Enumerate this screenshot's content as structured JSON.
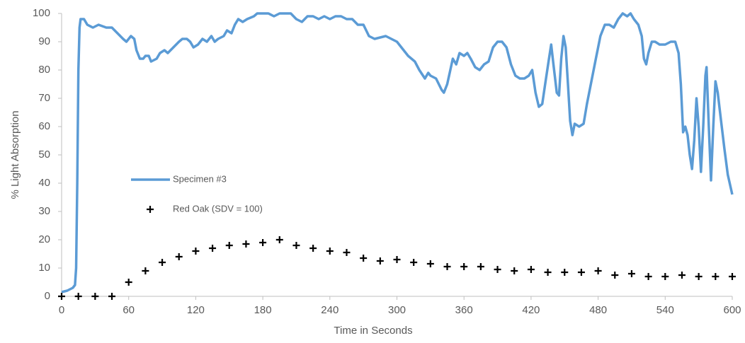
{
  "chart_data": {
    "type": "line",
    "x_label": "Time in Seconds",
    "y_label": "% Light Absorption",
    "xlim": [
      0,
      600
    ],
    "xticks": [
      0,
      60,
      120,
      180,
      240,
      300,
      360,
      420,
      480,
      540,
      600
    ],
    "ylim": [
      0,
      100
    ],
    "yticks": [
      0,
      10,
      20,
      30,
      40,
      50,
      60,
      70,
      80,
      90,
      100
    ],
    "grid": false,
    "series": [
      {
        "name": "Specimen #3",
        "type": "line",
        "color": "#5b9bd5",
        "x": [
          0,
          5,
          10,
          12,
          13,
          14,
          15,
          16,
          17,
          20,
          23,
          28,
          33,
          40,
          45,
          50,
          55,
          58,
          62,
          65,
          67,
          70,
          73,
          75,
          78,
          80,
          85,
          88,
          92,
          95,
          100,
          105,
          108,
          112,
          115,
          118,
          122,
          126,
          130,
          134,
          137,
          140,
          145,
          148,
          152,
          155,
          158,
          162,
          166,
          172,
          175,
          185,
          190,
          195,
          205,
          210,
          215,
          220,
          225,
          230,
          235,
          240,
          245,
          250,
          255,
          260,
          265,
          270,
          275,
          280,
          290,
          300,
          310,
          316,
          320,
          325,
          328,
          330,
          335,
          340,
          342,
          345,
          350,
          353,
          356,
          360,
          363,
          366,
          370,
          374,
          378,
          382,
          386,
          390,
          394,
          398,
          402,
          406,
          410,
          414,
          418,
          421,
          424,
          427,
          430,
          433,
          436,
          438,
          440,
          443,
          445,
          447,
          449,
          451,
          453,
          455,
          457,
          459,
          463,
          467,
          470,
          474,
          478,
          482,
          486,
          490,
          494,
          498,
          502,
          506,
          509,
          512,
          516,
          519,
          521,
          523,
          525,
          528,
          531,
          535,
          540,
          545,
          549,
          552,
          554,
          556,
          558,
          560,
          562,
          564,
          566,
          568,
          570,
          572,
          574,
          576,
          577,
          579,
          581,
          583,
          585,
          587,
          590,
          593,
          596,
          600
        ],
        "values": [
          1.5,
          2,
          3,
          4,
          10,
          40,
          80,
          95,
          98,
          98,
          96,
          95,
          96,
          95,
          95,
          93,
          91,
          90,
          92,
          91,
          87,
          84,
          84,
          85,
          85,
          83,
          84,
          86,
          87,
          86,
          88,
          90,
          91,
          91,
          90,
          88,
          89,
          91,
          90,
          92,
          90,
          91,
          92,
          94,
          93,
          96,
          98,
          97,
          98,
          99,
          100,
          100,
          99,
          100,
          100,
          98,
          97,
          99,
          99,
          98,
          99,
          98,
          99,
          99,
          98,
          98,
          96,
          96,
          92,
          91,
          92,
          90,
          85,
          83,
          80,
          77,
          79,
          78,
          77,
          73,
          72,
          75,
          84,
          82,
          86,
          85,
          86,
          84,
          81,
          80,
          82,
          83,
          88,
          90,
          90,
          88,
          82,
          78,
          77,
          77,
          78,
          80,
          72,
          67,
          68,
          76,
          84,
          89,
          82,
          72,
          71,
          84,
          92,
          88,
          75,
          62,
          57,
          61,
          60,
          61,
          68,
          76,
          84,
          92,
          96,
          96,
          95,
          98,
          100,
          99,
          100,
          98,
          96,
          92,
          84,
          82,
          86,
          90,
          90,
          89,
          89,
          90,
          90,
          86,
          75,
          58,
          60,
          57,
          50,
          45,
          55,
          70,
          60,
          44,
          60,
          78,
          81,
          60,
          41,
          60,
          76,
          72,
          62,
          52,
          43,
          36
        ]
      },
      {
        "name": "Red Oak (SDV = 100)",
        "type": "scatter",
        "color": "#000000",
        "x": [
          0,
          15,
          30,
          45,
          60,
          75,
          90,
          105,
          120,
          135,
          150,
          165,
          180,
          195,
          210,
          225,
          240,
          255,
          270,
          285,
          300,
          315,
          330,
          345,
          360,
          375,
          390,
          405,
          420,
          435,
          450,
          465,
          480,
          495,
          510,
          525,
          540,
          555,
          570,
          585,
          600
        ],
        "values": [
          0,
          0,
          0,
          0,
          5,
          9,
          12,
          14,
          16,
          17,
          18,
          18.5,
          19,
          20,
          18,
          17,
          16,
          15.5,
          13.5,
          12.5,
          13,
          12,
          11.5,
          10.5,
          10.5,
          10.5,
          9.5,
          9,
          9.5,
          8.5,
          8.5,
          8.5,
          9,
          7.5,
          8,
          7,
          7,
          7.5,
          7,
          7,
          7
        ]
      }
    ]
  }
}
